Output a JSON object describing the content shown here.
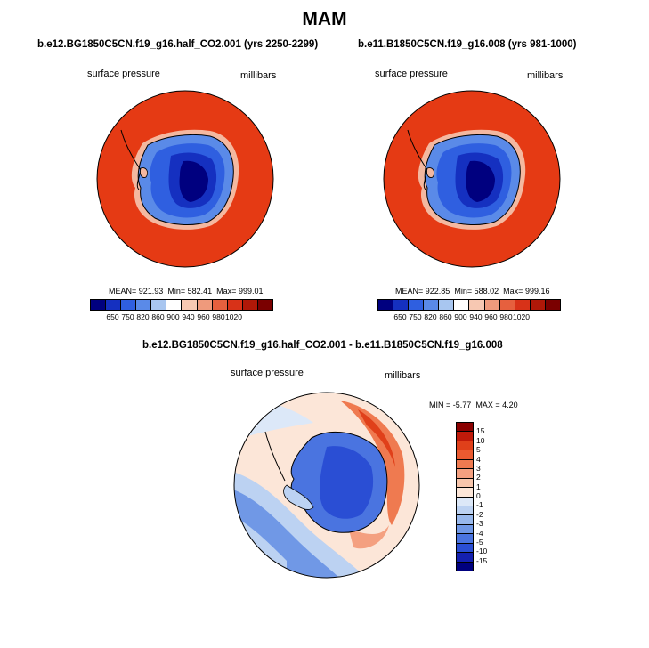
{
  "page": {
    "title": "MAM"
  },
  "panels": [
    {
      "title": "b.e12.BG1850C5CN.f19_g16.half_CO2.001 (yrs 2250-2299)",
      "variable": "surface pressure",
      "units": "millibars",
      "stats": {
        "mean_label": "MEAN=",
        "mean": "921.93",
        "min_label": "Min=",
        "min": "582.41",
        "max_label": "Max=",
        "max": "999.01"
      }
    },
    {
      "title": "b.e11.B1850C5CN.f19_g16.008 (yrs 981-1000)",
      "variable": "surface pressure",
      "units": "millibars",
      "stats": {
        "mean_label": "MEAN=",
        "mean": "922.85",
        "min_label": "Min=",
        "min": "588.02",
        "max_label": "Max=",
        "max": "999.16"
      }
    }
  ],
  "colorbar_abs": {
    "ticks": [
      "650",
      "750",
      "820",
      "860",
      "900",
      "940",
      "960",
      "980",
      "1020"
    ],
    "colors": [
      "#00007f",
      "#1530c0",
      "#2f5fe0",
      "#5a8ae8",
      "#a8c6f0",
      "#ffffff",
      "#f7c8b2",
      "#ef9a7c",
      "#e6603e",
      "#d83218",
      "#b01808",
      "#7a0000"
    ]
  },
  "diff": {
    "title": "b.e12.BG1850C5CN.f19_g16.half_CO2.001 - b.e11.B1850C5CN.f19_g16.008",
    "variable": "surface pressure",
    "units": "millibars",
    "stats": {
      "min_label": "MIN =",
      "min": "-5.77",
      "max_label": "MAX =",
      "max": "4.20"
    }
  },
  "colorbar_diff": {
    "ticks": [
      "15",
      "10",
      "5",
      "4",
      "3",
      "2",
      "1",
      "0",
      "-1",
      "-2",
      "-3",
      "-4",
      "-5",
      "-10",
      "-15"
    ],
    "colors": [
      "#8a0000",
      "#c01a0a",
      "#e0401a",
      "#ea5a30",
      "#ef7a50",
      "#f4a080",
      "#f8c6ac",
      "#fce6d8",
      "#dce8f8",
      "#bcd2f2",
      "#98b8ec",
      "#7098e6",
      "#4a74e0",
      "#2a4ed4",
      "#1420b0",
      "#00007f"
    ]
  }
}
